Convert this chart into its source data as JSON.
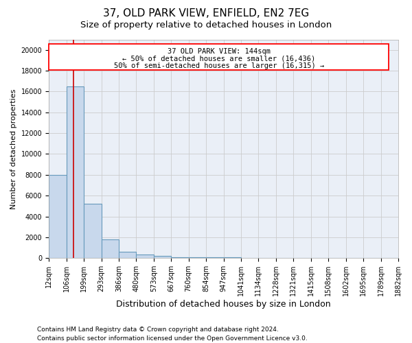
{
  "title1": "37, OLD PARK VIEW, ENFIELD, EN2 7EG",
  "title2": "Size of property relative to detached houses in London",
  "xlabel": "Distribution of detached houses by size in London",
  "ylabel": "Number of detached properties",
  "footnote1": "Contains HM Land Registry data © Crown copyright and database right 2024.",
  "footnote2": "Contains public sector information licensed under the Open Government Licence v3.0.",
  "annotation_line1": "37 OLD PARK VIEW: 144sqm",
  "annotation_line2": "← 50% of detached houses are smaller (16,436)",
  "annotation_line3": "50% of semi-detached houses are larger (16,315) →",
  "bar_edges": [
    12,
    106,
    199,
    293,
    386,
    480,
    573,
    667,
    760,
    854,
    947,
    1041,
    1134,
    1228,
    1321,
    1415,
    1508,
    1602,
    1695,
    1789,
    1882
  ],
  "bar_heights": [
    8000,
    16500,
    5200,
    1800,
    600,
    350,
    200,
    100,
    80,
    60,
    50,
    40,
    35,
    30,
    25,
    20,
    15,
    12,
    10,
    8
  ],
  "bar_color": "#c8d8ec",
  "bar_edge_color": "#6699bb",
  "bar_linewidth": 0.8,
  "red_line_x": 144,
  "ylim": [
    0,
    21000
  ],
  "yticks": [
    0,
    2000,
    4000,
    6000,
    8000,
    10000,
    12000,
    14000,
    16000,
    18000,
    20000
  ],
  "tick_labels": [
    "12sqm",
    "106sqm",
    "199sqm",
    "293sqm",
    "386sqm",
    "480sqm",
    "573sqm",
    "667sqm",
    "760sqm",
    "854sqm",
    "947sqm",
    "1041sqm",
    "1134sqm",
    "1228sqm",
    "1321sqm",
    "1415sqm",
    "1508sqm",
    "1602sqm",
    "1695sqm",
    "1789sqm",
    "1882sqm"
  ],
  "grid_color": "#cccccc",
  "plot_bg_color": "#eaeff7",
  "title1_fontsize": 11,
  "title2_fontsize": 9.5,
  "annotation_fontsize": 7.5,
  "ylabel_fontsize": 8,
  "xlabel_fontsize": 9,
  "tick_fontsize": 7
}
